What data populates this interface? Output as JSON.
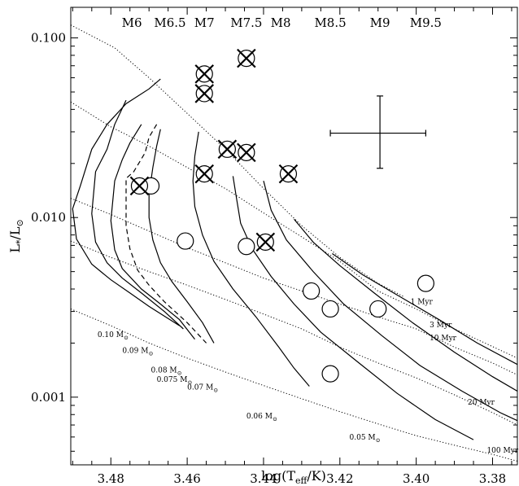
{
  "chart_data": {
    "type": "scatter",
    "xlabel": "log(T",
    "xlabel_sub": "eff",
    "xlabel_tail": "/K)",
    "ylabel": "L",
    "ylabel_sub1": "*",
    "ylabel_mid": "/L",
    "ylabel_sub2": "⊙",
    "xlim": [
      3.4905,
      3.3735
    ],
    "ylim": [
      0.00042,
      0.148
    ],
    "yscale": "log",
    "grid": false,
    "x_ticks": [
      {
        "value": 3.48,
        "label": "3.48"
      },
      {
        "value": 3.46,
        "label": "3.46"
      },
      {
        "value": 3.44,
        "label": "3.44"
      },
      {
        "value": 3.42,
        "label": "3.42"
      },
      {
        "value": 3.4,
        "label": "3.40"
      },
      {
        "value": 3.38,
        "label": "3.38"
      }
    ],
    "y_ticks": [
      {
        "value": 0.1,
        "label": "0.100"
      },
      {
        "value": 0.01,
        "label": "0.010"
      },
      {
        "value": 0.001,
        "label": "0.001"
      }
    ],
    "spectral_types": [
      {
        "value": 3.4745,
        "label": "M6"
      },
      {
        "value": 3.4645,
        "label": "M6.5"
      },
      {
        "value": 3.4555,
        "label": "M7"
      },
      {
        "value": 3.4445,
        "label": "M7.5"
      },
      {
        "value": 3.4355,
        "label": "M8"
      },
      {
        "value": 3.4225,
        "label": "M8.5"
      },
      {
        "value": 3.4095,
        "label": "M9"
      },
      {
        "value": 3.3975,
        "label": "M9.5"
      }
    ],
    "error_bar": {
      "x": 3.4095,
      "y": 0.0295,
      "x_err_low": 3.4225,
      "x_err_high": 3.3975,
      "y_err_low": 0.0188,
      "y_err_high": 0.0475
    },
    "series": [
      {
        "name": "",
        "marker": "open-circle",
        "points": [
          {
            "x": 3.4695,
            "y": 0.015
          },
          {
            "x": 3.4605,
            "y": 0.0074
          },
          {
            "x": 3.4445,
            "y": 0.0069
          },
          {
            "x": 3.4275,
            "y": 0.0039
          },
          {
            "x": 3.4225,
            "y": 0.0031
          },
          {
            "x": 3.41,
            "y": 0.0031
          },
          {
            "x": 3.3975,
            "y": 0.0043
          },
          {
            "x": 3.4225,
            "y": 0.00135
          }
        ]
      },
      {
        "name": "",
        "marker": "crossed-circle",
        "points": [
          {
            "x": 3.4725,
            "y": 0.015
          },
          {
            "x": 3.4555,
            "y": 0.063
          },
          {
            "x": 3.4555,
            "y": 0.049
          },
          {
            "x": 3.4445,
            "y": 0.077
          },
          {
            "x": 3.4495,
            "y": 0.024
          },
          {
            "x": 3.4445,
            "y": 0.023
          },
          {
            "x": 3.4555,
            "y": 0.0175
          },
          {
            "x": 3.4335,
            "y": 0.0175
          },
          {
            "x": 3.4395,
            "y": 0.0073
          }
        ]
      }
    ],
    "isochrones": [
      {
        "label": "1 Myr",
        "style": "dotted",
        "points": [
          [
            3.4905,
            0.118
          ],
          [
            3.479,
            0.088
          ],
          [
            3.47,
            0.06
          ],
          [
            3.46,
            0.038
          ],
          [
            3.45,
            0.024
          ],
          [
            3.44,
            0.0145
          ],
          [
            3.43,
            0.009
          ],
          [
            3.42,
            0.006
          ],
          [
            3.41,
            0.0043
          ],
          [
            3.403,
            0.0036
          ]
        ]
      },
      {
        "label": "3 Myr",
        "style": "dotted",
        "points": [
          [
            3.4905,
            0.044
          ],
          [
            3.48,
            0.032
          ],
          [
            3.47,
            0.025
          ],
          [
            3.46,
            0.019
          ],
          [
            3.45,
            0.0145
          ],
          [
            3.44,
            0.0106
          ],
          [
            3.43,
            0.0078
          ],
          [
            3.42,
            0.0057
          ],
          [
            3.41,
            0.0039
          ],
          [
            3.4,
            0.0031
          ],
          [
            3.39,
            0.0024
          ],
          [
            3.3735,
            0.00165
          ]
        ]
      },
      {
        "label": "10 Myr",
        "style": "dotted",
        "points": [
          [
            3.4905,
            0.0128
          ],
          [
            3.48,
            0.0104
          ],
          [
            3.47,
            0.0084
          ],
          [
            3.46,
            0.0068
          ],
          [
            3.45,
            0.0056
          ],
          [
            3.44,
            0.0046
          ],
          [
            3.43,
            0.0039
          ],
          [
            3.42,
            0.0033
          ],
          [
            3.41,
            0.0028
          ],
          [
            3.4,
            0.0024
          ],
          [
            3.39,
            0.0019
          ],
          [
            3.38,
            0.00155
          ],
          [
            3.3735,
            0.00133
          ]
        ]
      },
      {
        "label": "20 Myr",
        "style": "dotted",
        "points": [
          [
            3.4905,
            0.0074
          ],
          [
            3.48,
            0.006
          ],
          [
            3.47,
            0.005
          ],
          [
            3.46,
            0.0042
          ],
          [
            3.45,
            0.0035
          ],
          [
            3.44,
            0.0029
          ],
          [
            3.43,
            0.0024
          ],
          [
            3.42,
            0.0019
          ],
          [
            3.41,
            0.00155
          ],
          [
            3.4,
            0.00128
          ],
          [
            3.39,
            0.00103
          ],
          [
            3.38,
            0.00082
          ],
          [
            3.3735,
            0.0007
          ]
        ]
      },
      {
        "label": "100 Myr",
        "style": "dotted",
        "points": [
          [
            3.4905,
            0.0031
          ],
          [
            3.48,
            0.0025
          ],
          [
            3.47,
            0.002
          ],
          [
            3.46,
            0.00165
          ],
          [
            3.45,
            0.00138
          ],
          [
            3.44,
            0.00116
          ],
          [
            3.43,
            0.00098
          ],
          [
            3.42,
            0.00083
          ],
          [
            3.41,
            0.00071
          ],
          [
            3.4,
            0.00061
          ],
          [
            3.39,
            0.00054
          ],
          [
            3.38,
            0.00048
          ],
          [
            3.3735,
            0.00044
          ]
        ]
      }
    ],
    "tracks": [
      {
        "label": "0.10 M",
        "style": "solid",
        "points": [
          [
            3.467,
            0.059
          ],
          [
            3.47,
            0.052
          ],
          [
            3.476,
            0.043
          ],
          [
            3.481,
            0.033
          ],
          [
            3.485,
            0.024
          ],
          [
            3.488,
            0.015
          ],
          [
            3.49,
            0.0112
          ],
          [
            3.489,
            0.0076
          ],
          [
            3.485,
            0.0055
          ],
          [
            3.48,
            0.0045
          ],
          [
            3.475,
            0.0038
          ],
          [
            3.47,
            0.0032
          ],
          [
            3.462,
            0.0025
          ]
        ]
      },
      {
        "label": "0.09 M",
        "style": "solid",
        "points": [
          [
            3.476,
            0.045
          ],
          [
            3.479,
            0.033
          ],
          [
            3.481,
            0.024
          ],
          [
            3.484,
            0.018
          ],
          [
            3.485,
            0.0105
          ],
          [
            3.484,
            0.0073
          ],
          [
            3.481,
            0.0056
          ],
          [
            3.477,
            0.0046
          ],
          [
            3.472,
            0.0038
          ],
          [
            3.466,
            0.003
          ],
          [
            3.461,
            0.0024
          ]
        ]
      },
      {
        "label": "0.08 M",
        "style": "solid",
        "points": [
          [
            3.472,
            0.033
          ],
          [
            3.475,
            0.026
          ],
          [
            3.477,
            0.021
          ],
          [
            3.479,
            0.016
          ],
          [
            3.48,
            0.0096
          ],
          [
            3.479,
            0.0066
          ],
          [
            3.477,
            0.0052
          ],
          [
            3.472,
            0.004
          ],
          [
            3.467,
            0.0033
          ],
          [
            3.462,
            0.0027
          ],
          [
            3.458,
            0.0021
          ]
        ]
      },
      {
        "label": "0.075 M",
        "style": "dashed",
        "points": [
          [
            3.468,
            0.033
          ],
          [
            3.47,
            0.028
          ],
          [
            3.471,
            0.023
          ],
          [
            3.474,
            0.018
          ],
          [
            3.476,
            0.0165
          ],
          [
            3.476,
            0.0125
          ],
          [
            3.476,
            0.009
          ],
          [
            3.475,
            0.0067
          ],
          [
            3.473,
            0.0051
          ],
          [
            3.47,
            0.0042
          ],
          [
            3.466,
            0.0034
          ],
          [
            3.46,
            0.0026
          ],
          [
            3.455,
            0.002
          ]
        ]
      },
      {
        "label": "0.07 M",
        "style": "solid",
        "points": [
          [
            3.467,
            0.031
          ],
          [
            3.468,
            0.025
          ],
          [
            3.469,
            0.019
          ],
          [
            3.47,
            0.0135
          ],
          [
            3.47,
            0.01
          ],
          [
            3.469,
            0.0075
          ],
          [
            3.467,
            0.0056
          ],
          [
            3.464,
            0.0044
          ],
          [
            3.46,
            0.0034
          ],
          [
            3.456,
            0.0026
          ],
          [
            3.453,
            0.002
          ]
        ]
      },
      {
        "label": "0.06 M",
        "style": "solid",
        "points": [
          [
            3.457,
            0.03
          ],
          [
            3.458,
            0.022
          ],
          [
            3.4585,
            0.016
          ],
          [
            3.458,
            0.0115
          ],
          [
            3.456,
            0.008
          ],
          [
            3.453,
            0.0057
          ],
          [
            3.448,
            0.004
          ],
          [
            3.442,
            0.0028
          ],
          [
            3.436,
            0.0019
          ],
          [
            3.432,
            0.00145
          ],
          [
            3.428,
            0.00115
          ]
        ]
      },
      {
        "label": "0.05 M",
        "style": "solid",
        "points": [
          [
            3.448,
            0.017
          ],
          [
            3.447,
            0.0125
          ],
          [
            3.446,
            0.0093
          ],
          [
            3.443,
            0.0067
          ],
          [
            3.438,
            0.0047
          ],
          [
            3.432,
            0.0033
          ],
          [
            3.425,
            0.0023
          ],
          [
            3.415,
            0.00155
          ],
          [
            3.405,
            0.00105
          ],
          [
            3.395,
            0.00075
          ],
          [
            3.385,
            0.00058
          ]
        ]
      },
      {
        "label": "",
        "style": "solid",
        "points": [
          [
            3.44,
            0.016
          ],
          [
            3.438,
            0.011
          ],
          [
            3.434,
            0.0075
          ],
          [
            3.427,
            0.005
          ],
          [
            3.419,
            0.0033
          ],
          [
            3.409,
            0.0022
          ],
          [
            3.399,
            0.0015
          ],
          [
            3.388,
            0.00108
          ],
          [
            3.378,
            0.00082
          ],
          [
            3.3735,
            0.00074
          ]
        ]
      },
      {
        "label": "",
        "style": "solid",
        "points": [
          [
            3.432,
            0.0098
          ],
          [
            3.427,
            0.0073
          ],
          [
            3.42,
            0.0054
          ],
          [
            3.411,
            0.0038
          ],
          [
            3.401,
            0.0026
          ],
          [
            3.39,
            0.00178
          ],
          [
            3.38,
            0.0013
          ],
          [
            3.3735,
            0.00108
          ]
        ]
      },
      {
        "label": "",
        "style": "solid",
        "points": [
          [
            3.422,
            0.0063
          ],
          [
            3.414,
            0.0048
          ],
          [
            3.404,
            0.0036
          ],
          [
            3.394,
            0.0027
          ],
          [
            3.384,
            0.002
          ],
          [
            3.3735,
            0.00152
          ]
        ]
      }
    ],
    "age_labels": [
      {
        "x": 3.4015,
        "y": 0.0033,
        "text": "1 Myr"
      },
      {
        "x": 3.3965,
        "y": 0.00245,
        "text": "3 Myr"
      },
      {
        "x": 3.3965,
        "y": 0.00207,
        "text": "10 Myr"
      },
      {
        "x": 3.3865,
        "y": 0.00091,
        "text": "20 Myr"
      },
      {
        "x": 3.3815,
        "y": 0.00049,
        "text": "100 Myr"
      }
    ],
    "mass_labels": [
      {
        "x": 3.4835,
        "y": 0.00216,
        "text": "0.10 M",
        "sub": "⊙"
      },
      {
        "x": 3.477,
        "y": 0.00176,
        "text": "0.09 M",
        "sub": "⊙"
      },
      {
        "x": 3.4695,
        "y": 0.00137,
        "text": "0.08 M",
        "sub": "⊙"
      },
      {
        "x": 3.468,
        "y": 0.00122,
        "text": "0.075 M",
        "sub": "⊙"
      },
      {
        "x": 3.46,
        "y": 0.0011,
        "text": "0.07 M",
        "sub": "⊙"
      },
      {
        "x": 3.4445,
        "y": 0.00076,
        "text": "0.06 M",
        "sub": "⊙"
      },
      {
        "x": 3.4175,
        "y": 0.00058,
        "text": "0.05 M",
        "sub": "⊙"
      }
    ]
  }
}
